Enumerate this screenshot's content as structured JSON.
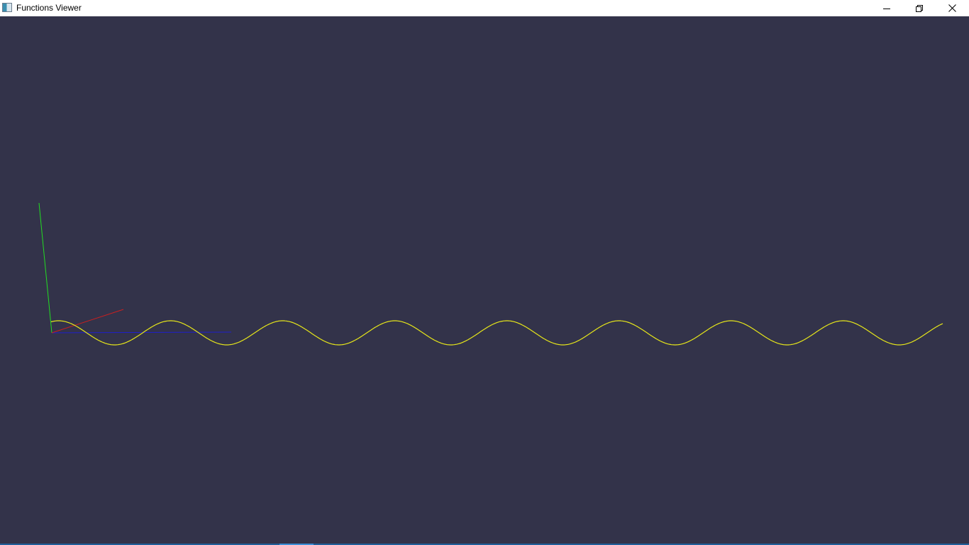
{
  "window": {
    "title": "Functions Viewer",
    "icon": "app-window-icon"
  },
  "caption_buttons": {
    "minimize_icon": "minimize-icon",
    "maximize_icon": "restore-icon",
    "close_icon": "close-icon"
  },
  "scene": {
    "background_color": "#33334a",
    "axes": {
      "x_color": "#cc1f1f",
      "y_color": "#22dd22",
      "z_color": "#1f1fcc"
    },
    "curve": {
      "color": "#e6e61a",
      "function": "sine",
      "periods_visible": 8
    }
  },
  "taskbar": {
    "color": "#1f5f9a",
    "accent_color": "#3b8fd8"
  }
}
